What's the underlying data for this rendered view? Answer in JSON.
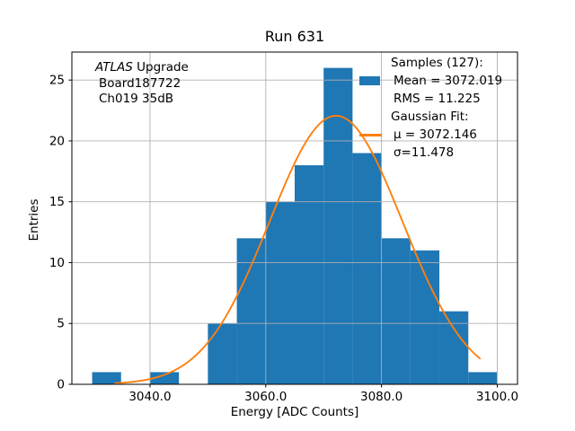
{
  "figure": {
    "title": "Run 631",
    "xlabel": "Energy [ADC Counts]",
    "ylabel": "Entries"
  },
  "annotation": {
    "line1_italic": "ATLAS",
    "line1_rest": " Upgrade",
    "line2": "Board187722",
    "line3": "Ch019 35dB"
  },
  "legend": {
    "rows": [
      {
        "label": "Samples (127):",
        "handle": "none"
      },
      {
        "label": "Mean = 3072.019",
        "handle": "histogram-swatch"
      },
      {
        "label": "RMS = 11.225",
        "handle": "none"
      },
      {
        "label": "Gaussian Fit:",
        "handle": "none"
      },
      {
        "label": "μ = 3072.146",
        "handle": "gaussian-line"
      },
      {
        "label": "σ=11.478",
        "handle": "none"
      }
    ]
  },
  "chart_data": {
    "type": "bar",
    "subtype": "histogram-with-gaussian-fit",
    "title": "Run 631",
    "xlabel": "Energy [ADC Counts]",
    "ylabel": "Entries",
    "bin_start": 3030,
    "bin_width": 5,
    "bin_counts": [
      1,
      0,
      1,
      0,
      5,
      12,
      15,
      18,
      26,
      19,
      12,
      11,
      6,
      1
    ],
    "total_samples": 127,
    "stats": {
      "mean": 3072.019,
      "rms": 11.225
    },
    "fit": {
      "mu": 3072.146,
      "sigma": 11.478,
      "amplitude": 22.07,
      "x_min": 3034,
      "x_max": 3097
    },
    "xlim": [
      3026.5,
      3103.5
    ],
    "ylim": [
      0,
      27.3
    ],
    "xticks": [
      3040,
      3060,
      3080,
      3100
    ],
    "xtick_labels": [
      "3040.0",
      "3060.0",
      "3080.0",
      "3100.0"
    ],
    "yticks": [
      0,
      5,
      10,
      15,
      20,
      25
    ],
    "ytick_labels": [
      "0",
      "5",
      "10",
      "15",
      "20",
      "25"
    ],
    "grid": true,
    "legend_position": "upper-right",
    "colors": {
      "histogram": "#1f77b4",
      "fit_line": "#ff7f0e",
      "grid": "#b0b0b0",
      "spine": "#000000",
      "text": "#000000",
      "background": "#ffffff"
    }
  }
}
